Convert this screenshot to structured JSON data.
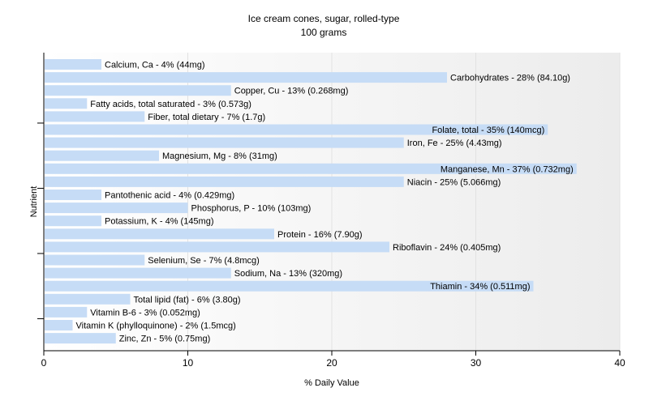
{
  "chart_data": {
    "type": "bar",
    "orientation": "horizontal",
    "title": "Ice cream cones, sugar, rolled-type",
    "subtitle": "100 grams",
    "xlabel": "% Daily Value",
    "ylabel": "Nutrient",
    "xlim": [
      0,
      40
    ],
    "xticks": [
      0,
      10,
      20,
      30,
      40
    ],
    "grid": true,
    "bar_color": "#c6dcf6",
    "categories": [
      "Calcium, Ca",
      "Carbohydrates",
      "Copper, Cu",
      "Fatty acids, total saturated",
      "Fiber, total dietary",
      "Folate, total",
      "Iron, Fe",
      "Magnesium, Mg",
      "Manganese, Mn",
      "Niacin",
      "Pantothenic acid",
      "Phosphorus, P",
      "Potassium, K",
      "Protein",
      "Riboflavin",
      "Selenium, Se",
      "Sodium, Na",
      "Thiamin",
      "Total lipid (fat)",
      "Vitamin B-6",
      "Vitamin K (phylloquinone)",
      "Zinc, Zn"
    ],
    "values": [
      4,
      28,
      13,
      3,
      7,
      35,
      25,
      8,
      37,
      25,
      4,
      10,
      4,
      16,
      24,
      7,
      13,
      34,
      6,
      3,
      2,
      5
    ],
    "labels": [
      "Calcium, Ca - 4% (44mg)",
      "Carbohydrates - 28% (84.10g)",
      "Copper, Cu - 13% (0.268mg)",
      "Fatty acids, total saturated - 3% (0.573g)",
      "Fiber, total dietary - 7% (1.7g)",
      "Folate, total - 35% (140mcg)",
      "Iron, Fe - 25% (4.43mg)",
      "Magnesium, Mg - 8% (31mg)",
      "Manganese, Mn - 37% (0.732mg)",
      "Niacin - 25% (5.066mg)",
      "Pantothenic acid - 4% (0.429mg)",
      "Phosphorus, P - 10% (103mg)",
      "Potassium, K - 4% (145mg)",
      "Protein - 16% (7.90g)",
      "Riboflavin - 24% (0.405mg)",
      "Selenium, Se - 7% (4.8mcg)",
      "Sodium, Na - 13% (320mg)",
      "Thiamin - 34% (0.511mg)",
      "Total lipid (fat) - 6% (3.80g)",
      "Vitamin B-6 - 3% (0.052mg)",
      "Vitamin K (phylloquinone) - 2% (1.5mcg)",
      "Zinc, Zn - 5% (0.75mg)"
    ]
  }
}
